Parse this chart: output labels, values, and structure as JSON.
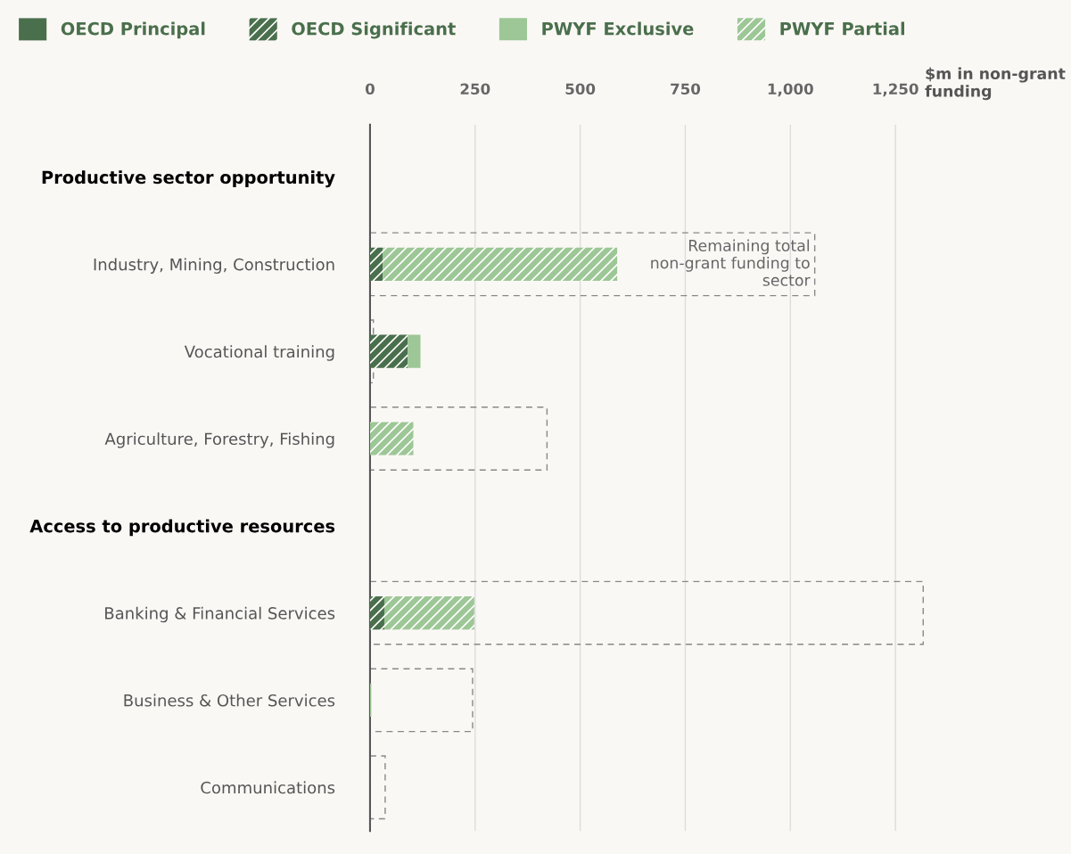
{
  "chart_data": {
    "type": "bar",
    "orientation": "horizontal",
    "categories": [
      "Productive sector opportunity",
      "Industry, Mining, Construction",
      "Vocational training",
      "Agriculture, Forestry, Fishing",
      "Access to productive resources",
      "Banking & Financial Services",
      "Business & Other Services",
      "Communications"
    ],
    "series": [
      {
        "name": "OECD Principal",
        "color": "#4a6f4c",
        "values": [
          null,
          0,
          0,
          0,
          null,
          0,
          0,
          0
        ],
        "base": [
          null,
          null,
          null,
          null,
          null,
          null,
          null,
          null
        ]
      },
      {
        "name": "OECD Significant",
        "color": "#4a6f4c",
        "values": [
          null,
          30,
          90,
          0,
          null,
          34,
          0,
          0
        ],
        "base": [
          null,
          0,
          0,
          null,
          null,
          0,
          null,
          null
        ]
      },
      {
        "name": "PWYF Exclusive",
        "color": "#9dc796",
        "values": [
          null,
          0,
          30,
          0,
          null,
          0,
          3,
          0
        ],
        "base": [
          null,
          null,
          90,
          null,
          null,
          null,
          0,
          null
        ]
      },
      {
        "name": "PWYF Partial",
        "color": "#9dc796",
        "values": [
          null,
          558,
          0,
          103,
          null,
          214,
          0,
          0
        ],
        "base": [
          null,
          30,
          null,
          0,
          null,
          34,
          null,
          null
        ]
      },
      {
        "color": "#888888",
        "line_style": "dashed",
        "values": [
          null,
          1058,
          8,
          421,
          null,
          1316,
          244,
          36
        ]
      }
    ],
    "xlabel": "$m in non-grant funding",
    "xlim": [
      0,
      1316
    ],
    "xticks": [
      0,
      250,
      500,
      750,
      {
        "value": 1000,
        "label": "1,000"
      },
      {
        "value": 1250,
        "label": "1,250"
      }
    ],
    "annotations": [
      "Remaining total\nnon-grant funding to\nsector"
    ],
    "grid": "x",
    "legend": "top"
  }
}
